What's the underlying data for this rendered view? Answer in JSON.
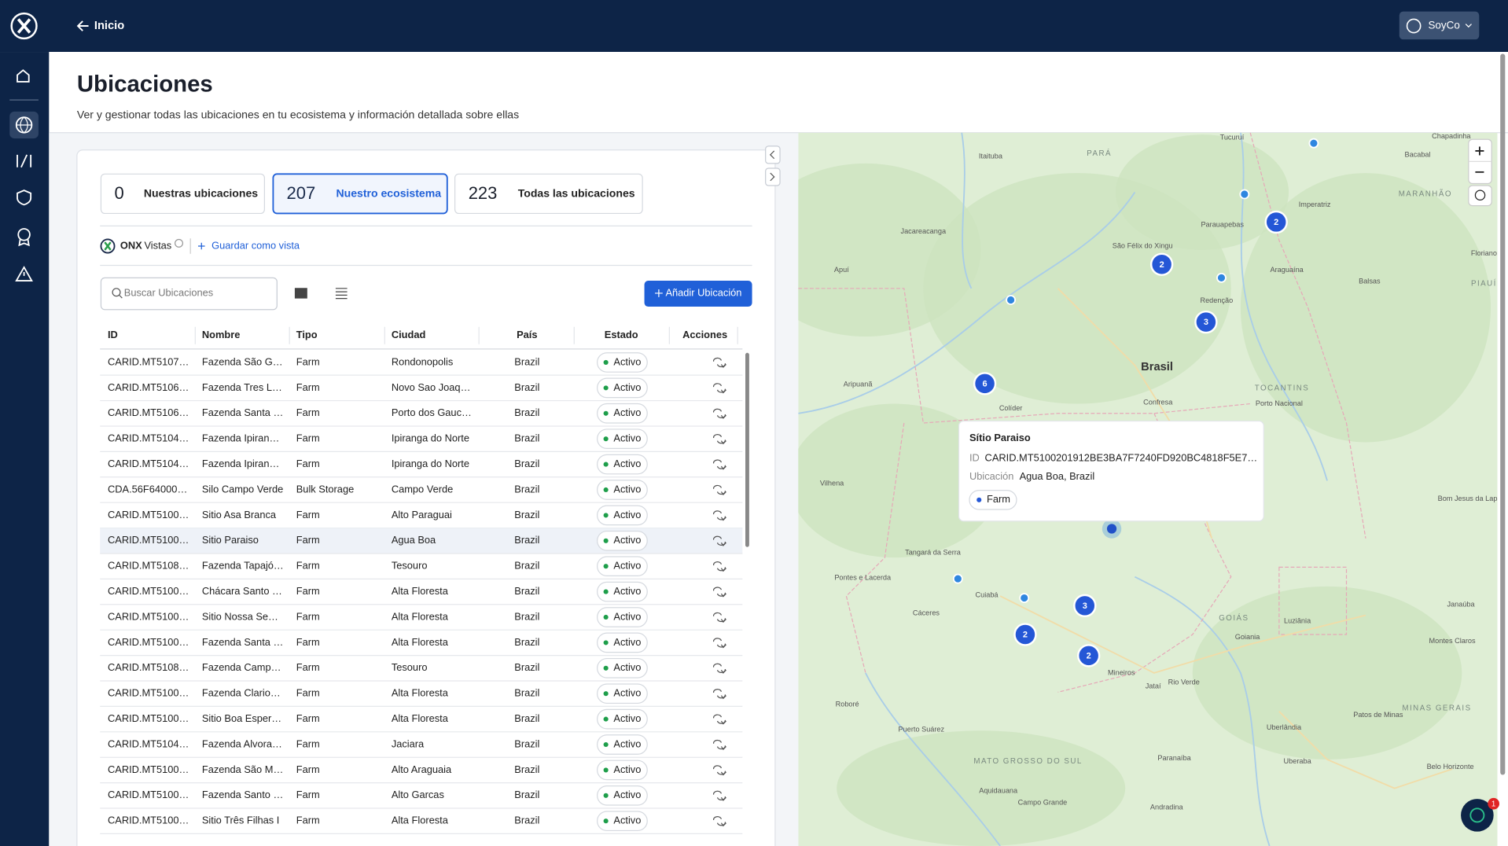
{
  "topbar": {
    "back": "Inicio",
    "user": "SoyCo"
  },
  "header": {
    "title": "Ubicaciones",
    "subtitle": "Ver y gestionar todas las ubicaciones en tu ecosistema y información detallada sobre ellas"
  },
  "tabs": [
    {
      "count": 0,
      "label": "Nuestras ubicaciones"
    },
    {
      "count": 207,
      "label": "Nuestro ecosistema"
    },
    {
      "count": 223,
      "label": "Todas las ubicaciones"
    }
  ],
  "views": {
    "brand": "ONX",
    "label": "Vistas",
    "save": "Guardar como vista"
  },
  "search": {
    "placeholder": "Buscar Ubicaciones"
  },
  "add_button": "Añadir Ubicación",
  "table": {
    "columns": [
      "ID",
      "Nombre",
      "Tipo",
      "Ciudad",
      "País",
      "Estado",
      "Acciones"
    ],
    "rows": [
      [
        "CARID.MT5107…",
        "Fazenda São G…",
        "Farm",
        "Rondonopolis",
        "Brazil",
        "Activo"
      ],
      [
        "CARID.MT5106…",
        "Fazenda Tres L…",
        "Farm",
        "Novo Sao Joaq…",
        "Brazil",
        "Activo"
      ],
      [
        "CARID.MT5106…",
        "Fazenda Santa …",
        "Farm",
        "Porto dos Gauc…",
        "Brazil",
        "Activo"
      ],
      [
        "CARID.MT5104…",
        "Fazenda Ipiran…",
        "Farm",
        "Ipiranga do Norte",
        "Brazil",
        "Activo"
      ],
      [
        "CARID.MT5104…",
        "Fazenda Ipiran…",
        "Farm",
        "Ipiranga do Norte",
        "Brazil",
        "Activo"
      ],
      [
        "CDA.56F64000…",
        "Silo Campo Verde",
        "Bulk Storage",
        "Campo Verde",
        "Brazil",
        "Activo"
      ],
      [
        "CARID.MT5100…",
        "Sitio Asa Branca",
        "Farm",
        "Alto Paraguai",
        "Brazil",
        "Activo"
      ],
      [
        "CARID.MT5100…",
        "Sitio Paraiso",
        "Farm",
        "Agua Boa",
        "Brazil",
        "Activo"
      ],
      [
        "CARID.MT5108…",
        "Fazenda Tapajó…",
        "Farm",
        "Tesouro",
        "Brazil",
        "Activo"
      ],
      [
        "CARID.MT5100…",
        "Chácara Santo …",
        "Farm",
        "Alta Floresta",
        "Brazil",
        "Activo"
      ],
      [
        "CARID.MT5100…",
        "Sitio Nossa Se…",
        "Farm",
        "Alta Floresta",
        "Brazil",
        "Activo"
      ],
      [
        "CARID.MT5100…",
        "Fazenda Santa …",
        "Farm",
        "Alta Floresta",
        "Brazil",
        "Activo"
      ],
      [
        "CARID.MT5108…",
        "Fazenda Camp…",
        "Farm",
        "Tesouro",
        "Brazil",
        "Activo"
      ],
      [
        "CARID.MT5100…",
        "Fazenda Clario…",
        "Farm",
        "Alta Floresta",
        "Brazil",
        "Activo"
      ],
      [
        "CARID.MT5100…",
        "Sitio Boa Esper…",
        "Farm",
        "Alta Floresta",
        "Brazil",
        "Activo"
      ],
      [
        "CARID.MT5104…",
        "Fazenda Alvora…",
        "Farm",
        "Jaciara",
        "Brazil",
        "Activo"
      ],
      [
        "CARID.MT5100…",
        "Fazenda São M…",
        "Farm",
        "Alto Araguaia",
        "Brazil",
        "Activo"
      ],
      [
        "CARID.MT5100…",
        "Fazenda Santo …",
        "Farm",
        "Alto Garcas",
        "Brazil",
        "Activo"
      ],
      [
        "CARID.MT5100…",
        "Sitio Três Filhas I",
        "Farm",
        "Alta Floresta",
        "Brazil",
        "Activo"
      ]
    ]
  },
  "map": {
    "labels": [
      "PARÁ",
      "MARANHÃO",
      "PIAUÍ",
      "TOCANTINS",
      "Brasil",
      "Itaituba",
      "Tucuruí",
      "Jacareacanga",
      "São Félix do Xingu",
      "Parauapebas",
      "Imperatriz",
      "Araguaína",
      "Redenção",
      "Balsas",
      "Apuí",
      "Aripuanã",
      "Colíder",
      "Confresa",
      "Porto Nacional",
      "Vilhena",
      "Tangará da Serra",
      "Pontes e Lacerda",
      "Cuiabá",
      "Cáceres",
      "GOIÁS",
      "Goiania",
      "Luziânia",
      "Montes Claros",
      "Mineiros",
      "Jataí",
      "Rio Verde",
      "Roboré",
      "Puerto Suárez",
      "MATO GROSSO DO SUL",
      "Campo Grande",
      "Aquidauana",
      "MINAS GERAIS",
      "Belo Horizonte",
      "Uberaba",
      "Uberlândia",
      "Patos de Minas",
      "Paranaíba",
      "Andradina",
      "Chapadinha",
      "Bacabal",
      "Floriano",
      "Janaúba",
      "Bom Jesus da Lapa"
    ],
    "clusters": [
      2,
      2,
      3,
      6,
      3,
      2,
      2
    ],
    "tooltip": {
      "title": "Sítio Paraiso",
      "id_label": "ID",
      "id": "CARID.MT5100201912BE3BA7F7240FD920BC4818F5E7…",
      "location_label": "Ubicación",
      "location": "Agua Boa, Brazil",
      "tag": "Farm"
    }
  },
  "chat_badge": 1
}
